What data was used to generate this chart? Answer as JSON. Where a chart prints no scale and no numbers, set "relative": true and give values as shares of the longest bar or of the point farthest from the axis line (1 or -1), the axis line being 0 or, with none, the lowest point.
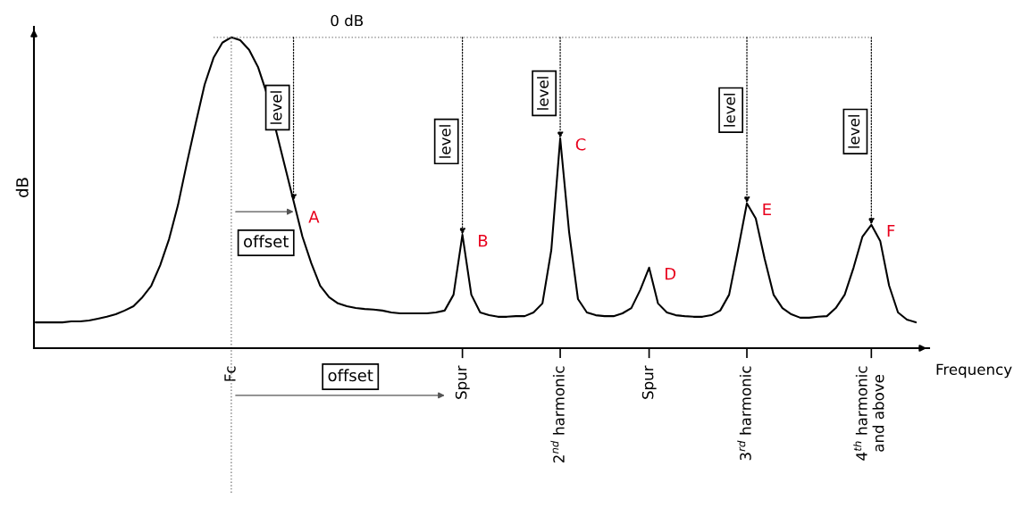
{
  "chart_data": {
    "type": "line",
    "relative": true,
    "xlabel": "Frequency",
    "ylabel": "dB",
    "categories": [
      null,
      null,
      null,
      null,
      null,
      null,
      null,
      null,
      null,
      null,
      null,
      null,
      null,
      null,
      null,
      null,
      null,
      null,
      null,
      null,
      null,
      null,
      "Fc",
      null,
      null,
      null,
      null,
      null,
      null,
      null,
      null,
      null,
      null,
      null,
      null,
      null,
      null,
      null,
      null,
      null,
      null,
      null,
      null,
      null,
      null,
      null,
      null,
      null,
      "Spur",
      null,
      null,
      null,
      null,
      null,
      null,
      null,
      null,
      null,
      null,
      "2$^{nd}$ harmonic",
      null,
      null,
      null,
      null,
      null,
      null,
      null,
      null,
      null,
      "Spur",
      null,
      null,
      null,
      null,
      null,
      null,
      null,
      null,
      null,
      null,
      "3$^{rd}$ harmonic",
      null,
      null,
      null,
      null,
      null,
      null,
      null,
      null,
      null,
      null,
      null,
      null,
      null,
      "4$^{th}$ harmonic\nand above",
      null,
      null,
      null,
      null,
      null
    ],
    "marker": "none",
    "line_style": "solid",
    "series": [
      {
        "color": "#000000",
        "values": [
          0.083,
          0.083,
          0.083,
          0.083,
          0.086,
          0.086,
          0.089,
          0.095,
          0.101,
          0.109,
          0.121,
          0.135,
          0.164,
          0.201,
          0.267,
          0.351,
          0.46,
          0.595,
          0.724,
          0.848,
          0.934,
          0.983,
          1.0,
          0.991,
          0.96,
          0.905,
          0.819,
          0.704,
          0.589,
          0.474,
          0.359,
          0.273,
          0.201,
          0.164,
          0.144,
          0.135,
          0.129,
          0.126,
          0.124,
          0.121,
          0.115,
          0.112,
          0.112,
          0.112,
          0.112,
          0.115,
          0.121,
          0.172,
          0.365,
          0.172,
          0.115,
          0.106,
          0.101,
          0.101,
          0.103,
          0.103,
          0.115,
          0.144,
          0.316,
          0.675,
          0.374,
          0.158,
          0.115,
          0.106,
          0.103,
          0.103,
          0.112,
          0.129,
          0.187,
          0.259,
          0.144,
          0.115,
          0.106,
          0.103,
          0.101,
          0.101,
          0.106,
          0.121,
          0.172,
          0.316,
          0.466,
          0.417,
          0.287,
          0.172,
          0.129,
          0.109,
          0.098,
          0.098,
          0.101,
          0.103,
          0.129,
          0.172,
          0.259,
          0.359,
          0.397,
          0.345,
          0.201,
          0.115,
          0.092,
          0.083
        ]
      }
    ],
    "annotations": [
      "0 dB",
      "A",
      "B",
      "C",
      "D",
      "E",
      "F",
      "level",
      "level",
      "level",
      "level",
      "level",
      "offset",
      "offset"
    ]
  }
}
